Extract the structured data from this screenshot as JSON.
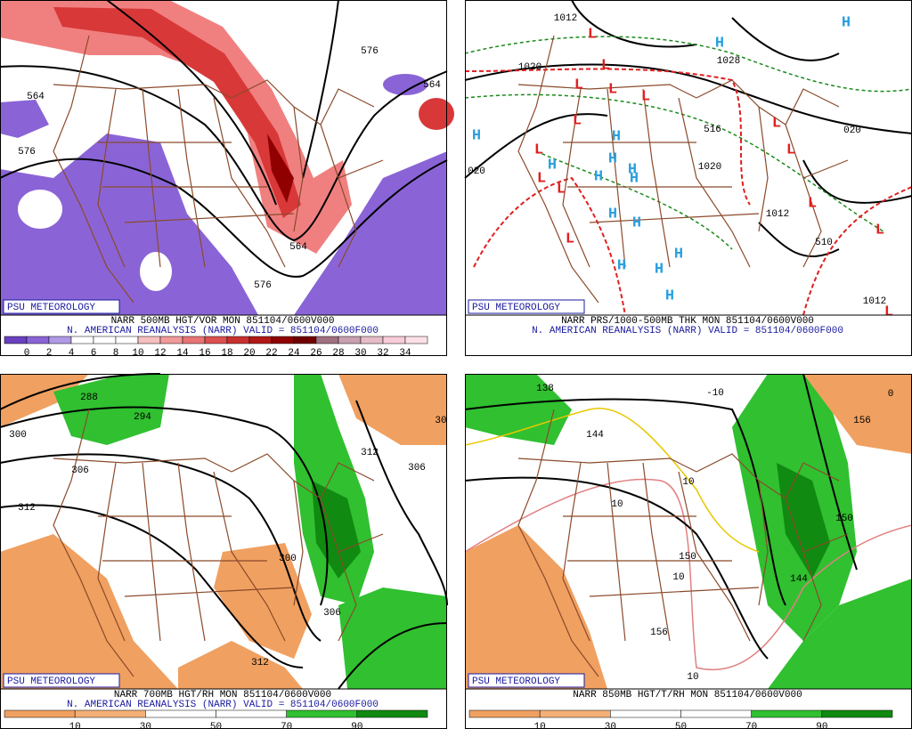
{
  "panels": [
    {
      "brand": "PSU METEOROLOGY",
      "title": "NARR 500MB HGT/VOR MON 851104/0600V000",
      "subtitle": "N. AMERICAN REANALYSIS (NARR) VALID = 851104/0600F000",
      "colorbar": {
        "colors": [
          "#6a40c0",
          "#8a64d6",
          "#b09ae6",
          "#ffffff",
          "#ffffff",
          "#ffffff",
          "#f6c0c0",
          "#f09a9a",
          "#e87474",
          "#dc5050",
          "#c83030",
          "#b01818",
          "#900000",
          "#700000",
          "#a07080",
          "#c8a0b0",
          "#e6bcc8",
          "#f8ccd8",
          "#fce0e8"
        ],
        "ticks": [
          0,
          2,
          4,
          6,
          8,
          10,
          12,
          14,
          16,
          18,
          20,
          22,
          24,
          26,
          28,
          30,
          32,
          34
        ]
      },
      "labels": [
        "564",
        "576",
        "564",
        "576",
        "576",
        "564"
      ]
    },
    {
      "brand": "PSU METEOROLOGY",
      "title": "NARR PRS/1000-500MB THK MON 851104/0600V000",
      "subtitle": "N. AMERICAN REANALYSIS (NARR) VALID = 851104/0600F000",
      "labels": [
        "1012",
        "1020",
        "1028",
        "1020",
        "1012",
        "516",
        "510",
        "020",
        "1012",
        "020"
      ],
      "centers": [
        "L",
        "L",
        "L",
        "L",
        "L",
        "L",
        "L",
        "L",
        "L",
        "L",
        "L",
        "L",
        "L",
        "L",
        "L",
        "H",
        "H",
        "H",
        "H",
        "H",
        "H",
        "H",
        "H",
        "H",
        "H",
        "H",
        "H",
        "H",
        "H",
        "H"
      ]
    },
    {
      "brand": "PSU METEOROLOGY",
      "title": "NARR 700MB HGT/RH MON 851104/0600V000",
      "subtitle": "N. AMERICAN REANALYSIS (NARR) VALID = 851104/0600F000",
      "colorbar": {
        "colors": [
          "#f0a060",
          "#f4b078",
          "#ffffff",
          "#ffffff",
          "#30c030",
          "#108a10"
        ],
        "ticks": [
          10,
          30,
          50,
          70,
          90
        ]
      },
      "labels": [
        "300",
        "306",
        "312",
        "312",
        "306",
        "300",
        "306",
        "312",
        "294",
        "288",
        "30"
      ]
    },
    {
      "brand": "PSU METEOROLOGY",
      "title": "NARR 850MB HGT/T/RH MON 851104/0600V000",
      "subtitle": "",
      "colorbar": {
        "colors": [
          "#f0a060",
          "#f4b078",
          "#ffffff",
          "#ffffff",
          "#30c030",
          "#108a10"
        ],
        "ticks": [
          10,
          30,
          50,
          70,
          90
        ]
      },
      "labels": [
        "150",
        "150",
        "156",
        "156",
        "-10",
        "10",
        "10",
        "10",
        "10",
        "138",
        "144",
        "144",
        "0"
      ]
    }
  ]
}
